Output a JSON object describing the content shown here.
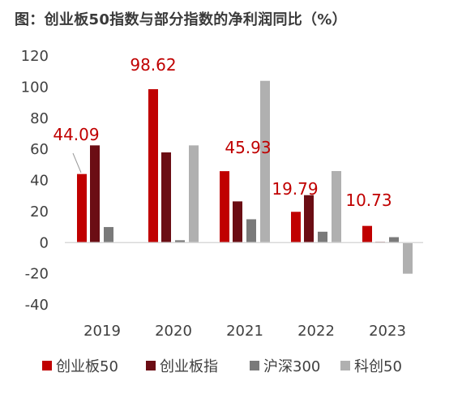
{
  "title": "图：创业板50指数与部分指数的净利润同比（%）",
  "chart_data": {
    "type": "bar",
    "categories": [
      "2019",
      "2020",
      "2021",
      "2022",
      "2023"
    ],
    "series": [
      {
        "name": "创业板50",
        "color": "#c00000",
        "values": [
          44.09,
          98.62,
          45.93,
          19.79,
          10.73
        ]
      },
      {
        "name": "创业板指",
        "color": "#6b0d14",
        "values": [
          62.5,
          58.0,
          26.5,
          30.5,
          0.5
        ]
      },
      {
        "name": "沪深300",
        "color": "#7a7a7a",
        "values": [
          10.0,
          1.5,
          15.0,
          7.0,
          3.5
        ]
      },
      {
        "name": "科创50",
        "color": "#b0b0b0",
        "values": [
          null,
          62.5,
          104.0,
          46.0,
          -20.0
        ]
      }
    ],
    "data_labels": [
      "44.09",
      "98.62",
      "45.93",
      "19.79",
      "10.73"
    ],
    "ylim": [
      -40,
      120
    ],
    "yticks": [
      "120",
      "100",
      "80",
      "60",
      "40",
      "20",
      "0",
      "-20",
      "-40"
    ],
    "legend_position": "bottom",
    "grid": false
  }
}
